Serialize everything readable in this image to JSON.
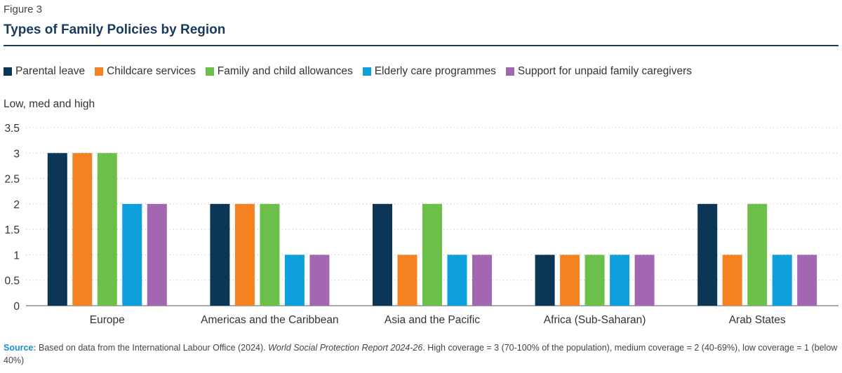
{
  "figure_label": "Figure 3",
  "title": "Types of Family Policies by Region",
  "legend_series": [
    {
      "name": "Parental leave",
      "color": "#0c3656"
    },
    {
      "name": "Childcare services",
      "color": "#f58220"
    },
    {
      "name": "Family and child allowances",
      "color": "#6cc04a"
    },
    {
      "name": "Elderly care programmes",
      "color": "#0e9fdd"
    },
    {
      "name": "Support for unpaid family caregivers",
      "color": "#a366b0"
    }
  ],
  "source": {
    "label": "Source:",
    "text_before": " Based on data from the International Labour Office (2024). ",
    "italic": "World Social Protection Report 2024-26",
    "text_after": ". High coverage = 3 (70-100% of the population), medium coverage = 2 (40-69%), low coverage = 1 (below 40%)"
  },
  "chart_data": {
    "type": "bar",
    "ylabel": "Low, med and high",
    "ylim": [
      0,
      3.5
    ],
    "yticks": [
      "0",
      "0.5",
      "1",
      "1.5",
      "2",
      "2.5",
      "3",
      "3.5"
    ],
    "grid": true,
    "legend_position": "top",
    "categories": [
      "Europe",
      "Americas and the Caribbean",
      "Asia and the Pacific",
      "Africa (Sub-Saharan)",
      "Arab States"
    ],
    "series": [
      {
        "name": "Parental leave",
        "color": "#0c3656",
        "values": [
          3,
          2,
          2,
          1,
          2
        ]
      },
      {
        "name": "Childcare services",
        "color": "#f58220",
        "values": [
          3,
          2,
          1,
          1,
          1
        ]
      },
      {
        "name": "Family and child allowances",
        "color": "#6cc04a",
        "values": [
          3,
          2,
          2,
          1,
          2
        ]
      },
      {
        "name": "Elderly care programmes",
        "color": "#0e9fdd",
        "values": [
          2,
          1,
          1,
          1,
          1
        ]
      },
      {
        "name": "Support for unpaid family caregivers",
        "color": "#a366b0",
        "values": [
          2,
          1,
          1,
          1,
          1
        ]
      }
    ]
  }
}
